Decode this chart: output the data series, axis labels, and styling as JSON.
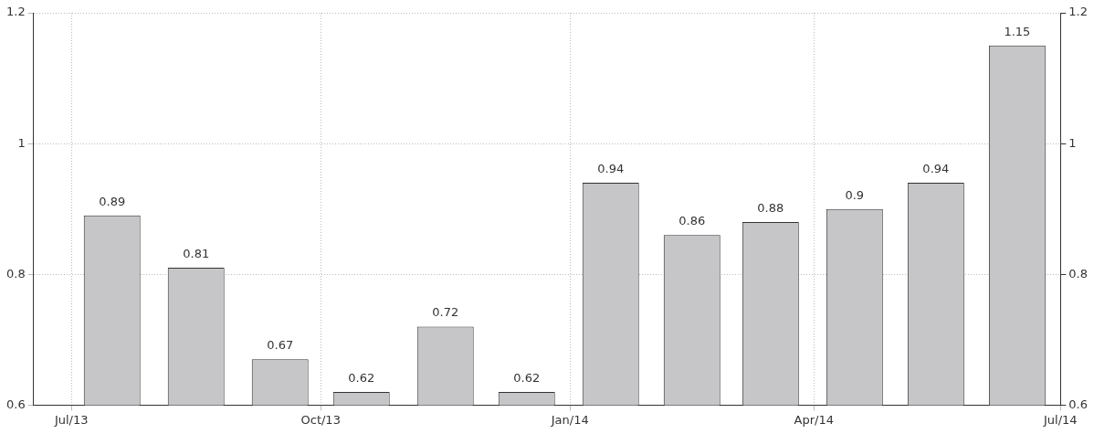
{
  "chart_data": {
    "type": "bar",
    "x": [
      "2013-07-16",
      "2013-08-16",
      "2013-09-16",
      "2013-10-16",
      "2013-11-16",
      "2013-12-16",
      "2014-01-16",
      "2014-02-15",
      "2014-03-16",
      "2014-04-16",
      "2014-05-16",
      "2014-06-15"
    ],
    "values": [
      0.89,
      0.81,
      0.67,
      0.62,
      0.72,
      0.62,
      0.94,
      0.86,
      0.88,
      0.9,
      0.94,
      1.15
    ],
    "color": "#c6c6c9",
    "data_labels": true,
    "xlim": [
      "2013-06-17",
      "2014-07-01"
    ],
    "xticks": [
      {
        "value": "2013-07-01",
        "label": "Jul/13"
      },
      {
        "value": "2013-10-01",
        "label": "Oct/13"
      },
      {
        "value": "2014-01-01",
        "label": "Jan/14"
      },
      {
        "value": "2014-04-01",
        "label": "Apr/14"
      },
      {
        "value": "2014-07-01",
        "label": "Jul/14"
      }
    ],
    "ylim": [
      0.6,
      1.2
    ],
    "yticks": [
      0.6,
      0.8,
      1,
      1.2
    ],
    "y2lim": [
      0.6,
      1.2
    ],
    "y2ticks": [
      0.6,
      0.8,
      1,
      1.2
    ],
    "grid": true
  }
}
